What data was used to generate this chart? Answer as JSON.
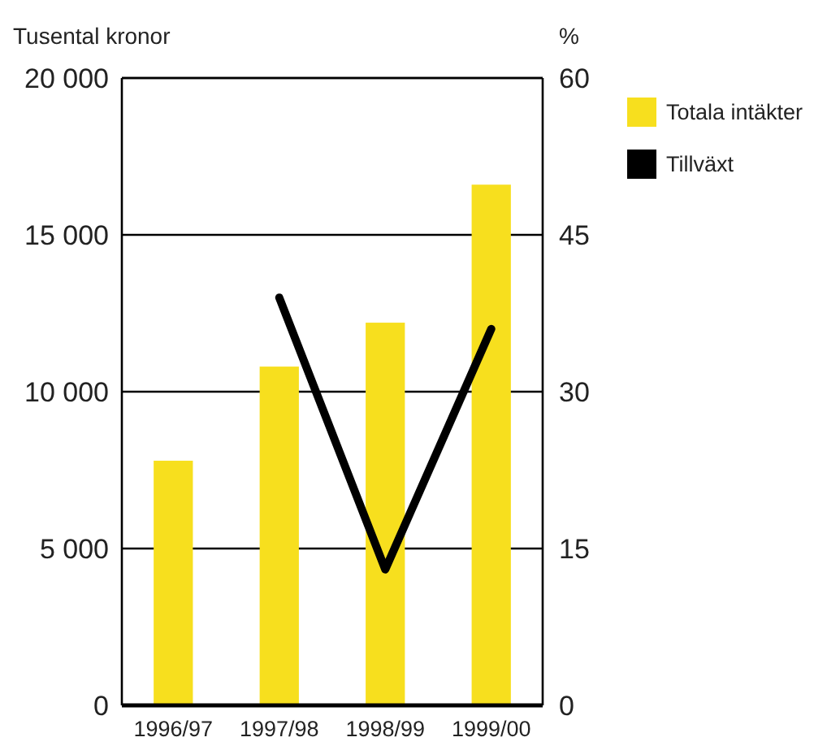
{
  "chart_data": {
    "type": "bar",
    "ylabel": "Tusental kronor",
    "y2label": "%",
    "categories": [
      "1996/97",
      "1997/98",
      "1998/99",
      "1999/00"
    ],
    "series": [
      {
        "name": "Totala intäkter",
        "color": "#f7df1e",
        "values": [
          7800,
          10800,
          12200,
          16600
        ]
      },
      {
        "name": "Tillväxt",
        "type": "line",
        "axis": "y2",
        "color": "#000000",
        "values": [
          null,
          39,
          13,
          36
        ]
      }
    ],
    "ylim": [
      0,
      20000
    ],
    "yticks": [
      0,
      {
        "value": 5000,
        "label": "5 000"
      },
      {
        "value": 10000,
        "label": "10 000"
      },
      {
        "value": 15000,
        "label": "15 000"
      },
      {
        "value": 20000,
        "label": "20 000"
      }
    ],
    "y2lim": [
      0,
      60
    ],
    "y2ticks": [
      0,
      15,
      30,
      45,
      60
    ],
    "grid": "y",
    "legend": "top right"
  }
}
